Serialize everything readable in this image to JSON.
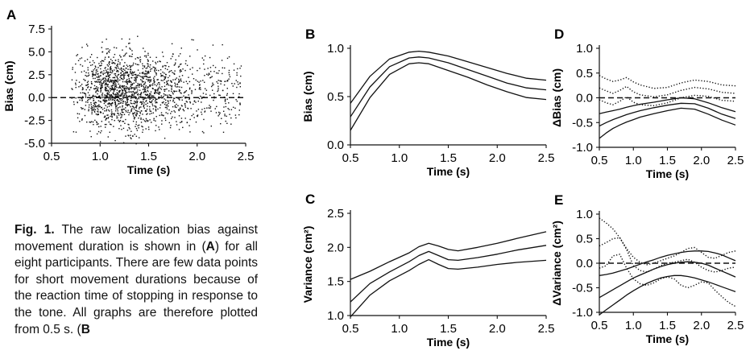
{
  "panels": [
    {
      "letter": "A",
      "type": "scatter",
      "xlabel": "Time (s)",
      "ylabel": "Bias (cm)",
      "xlim": [
        0.5,
        2.5
      ],
      "ylim": [
        -5.0,
        7.5
      ],
      "xticks": [
        0.5,
        1.0,
        1.5,
        2.0,
        2.5
      ],
      "yticks": [
        -5.0,
        -2.5,
        0.0,
        2.5,
        5.0,
        7.5
      ],
      "tick_decimals": [
        1,
        1
      ],
      "reference_line": 0,
      "scatter": {
        "n_points": 1800,
        "x_range": [
          0.7,
          2.45
        ],
        "x_peak": 1.05,
        "y_mean": 0.8,
        "y_sd": 2.1,
        "y_range": [
          -5.0,
          7.0
        ]
      }
    },
    {
      "letter": "B",
      "type": "line",
      "xlabel": "Time (s)",
      "ylabel": "Bias (cm)",
      "xlim": [
        0.5,
        2.5
      ],
      "ylim": [
        0.0,
        1.0
      ],
      "xticks": [
        0.5,
        1.0,
        1.5,
        2.0,
        2.5
      ],
      "yticks": [
        0.0,
        0.5,
        1.0
      ],
      "tick_decimals": [
        1,
        1
      ],
      "x": [
        0.5,
        0.7,
        0.9,
        1.1,
        1.2,
        1.3,
        1.5,
        1.7,
        1.9,
        2.1,
        2.3,
        2.5
      ],
      "series": [
        {
          "style": "solid",
          "values": [
            0.43,
            0.71,
            0.89,
            0.96,
            0.97,
            0.96,
            0.92,
            0.86,
            0.8,
            0.74,
            0.69,
            0.67
          ]
        },
        {
          "style": "solid",
          "values": [
            0.29,
            0.6,
            0.81,
            0.9,
            0.91,
            0.9,
            0.85,
            0.78,
            0.71,
            0.64,
            0.59,
            0.57
          ]
        },
        {
          "style": "solid",
          "values": [
            0.15,
            0.49,
            0.73,
            0.84,
            0.85,
            0.84,
            0.77,
            0.7,
            0.62,
            0.55,
            0.49,
            0.47
          ]
        }
      ]
    },
    {
      "letter": "C",
      "type": "line",
      "xlabel": "Time (s)",
      "ylabel": "Variance (cm²)",
      "xlim": [
        0.5,
        2.5
      ],
      "ylim": [
        1.0,
        2.5
      ],
      "xticks": [
        0.5,
        1.0,
        1.5,
        2.0,
        2.5
      ],
      "yticks": [
        1.0,
        1.5,
        2.0,
        2.5
      ],
      "tick_decimals": [
        1,
        1
      ],
      "x": [
        0.5,
        0.7,
        0.9,
        1.1,
        1.2,
        1.3,
        1.4,
        1.5,
        1.6,
        1.8,
        2.0,
        2.2,
        2.5
      ],
      "series": [
        {
          "style": "solid",
          "values": [
            1.53,
            1.65,
            1.79,
            1.92,
            2.01,
            2.06,
            2.02,
            1.97,
            1.95,
            2.0,
            2.06,
            2.13,
            2.23
          ]
        },
        {
          "style": "solid",
          "values": [
            1.2,
            1.47,
            1.64,
            1.79,
            1.88,
            1.94,
            1.88,
            1.82,
            1.81,
            1.85,
            1.9,
            1.96,
            2.03
          ]
        },
        {
          "style": "solid",
          "values": [
            0.98,
            1.3,
            1.51,
            1.66,
            1.75,
            1.82,
            1.75,
            1.69,
            1.68,
            1.71,
            1.75,
            1.78,
            1.81
          ]
        }
      ]
    },
    {
      "letter": "D",
      "type": "line",
      "xlabel": "Time (s)",
      "ylabel": "ΔBias (cm)",
      "xlim": [
        0.5,
        2.5
      ],
      "ylim": [
        -1.0,
        1.0
      ],
      "xticks": [
        0.5,
        1.0,
        1.5,
        2.0,
        2.5
      ],
      "yticks": [
        -1.0,
        -0.5,
        0.0,
        0.5,
        1.0
      ],
      "tick_decimals": [
        1,
        1
      ],
      "reference_line": 0,
      "x": [
        0.5,
        0.6,
        0.7,
        0.8,
        0.9,
        1.0,
        1.1,
        1.3,
        1.5,
        1.7,
        1.9,
        2.1,
        2.3,
        2.5
      ],
      "series": [
        {
          "style": "dotted",
          "values": [
            0.45,
            0.38,
            0.33,
            0.36,
            0.41,
            0.32,
            0.26,
            0.19,
            0.21,
            0.3,
            0.36,
            0.33,
            0.26,
            0.24
          ]
        },
        {
          "style": "dotted",
          "values": [
            0.2,
            0.14,
            0.09,
            0.15,
            0.23,
            0.12,
            0.06,
            0.02,
            0.06,
            0.15,
            0.21,
            0.18,
            0.11,
            0.09
          ]
        },
        {
          "style": "dotted",
          "values": [
            -0.04,
            -0.1,
            -0.14,
            -0.07,
            0.02,
            -0.09,
            -0.14,
            -0.16,
            -0.1,
            0.0,
            0.05,
            0.03,
            -0.05,
            -0.07
          ]
        },
        {
          "style": "solid",
          "values": [
            -0.32,
            -0.29,
            -0.26,
            -0.23,
            -0.19,
            -0.16,
            -0.13,
            -0.09,
            -0.04,
            0.0,
            -0.02,
            -0.1,
            -0.2,
            -0.28
          ]
        },
        {
          "style": "solid",
          "values": [
            -0.57,
            -0.5,
            -0.44,
            -0.39,
            -0.34,
            -0.3,
            -0.26,
            -0.2,
            -0.15,
            -0.11,
            -0.12,
            -0.21,
            -0.33,
            -0.42
          ]
        },
        {
          "style": "solid",
          "values": [
            -0.82,
            -0.71,
            -0.62,
            -0.55,
            -0.49,
            -0.44,
            -0.39,
            -0.32,
            -0.26,
            -0.21,
            -0.23,
            -0.33,
            -0.45,
            -0.55
          ]
        }
      ]
    },
    {
      "letter": "E",
      "type": "line",
      "xlabel": "Time (s)",
      "ylabel": "ΔVariance (cm²)",
      "xlim": [
        0.5,
        2.5
      ],
      "ylim": [
        -1.0,
        1.0
      ],
      "xticks": [
        0.5,
        1.0,
        1.5,
        2.0,
        2.5
      ],
      "yticks": [
        -1.0,
        -0.5,
        0.0,
        0.5,
        1.0
      ],
      "tick_decimals": [
        1,
        1
      ],
      "reference_line": 0,
      "x": [
        0.5,
        0.6,
        0.7,
        0.8,
        0.9,
        1.0,
        1.1,
        1.2,
        1.3,
        1.4,
        1.5,
        1.6,
        1.7,
        1.8,
        1.9,
        2.0,
        2.1,
        2.2,
        2.3,
        2.4,
        2.5
      ],
      "series": [
        {
          "style": "dotted",
          "values": [
            0.92,
            0.82,
            0.7,
            0.52,
            0.3,
            0.12,
            0.02,
            -0.03,
            0.0,
            0.05,
            0.1,
            0.15,
            0.22,
            0.3,
            0.32,
            0.22,
            0.12,
            0.1,
            0.16,
            0.22,
            0.25
          ]
        },
        {
          "style": "dotted",
          "values": [
            0.35,
            0.42,
            0.5,
            0.52,
            0.28,
            -0.05,
            -0.15,
            -0.18,
            -0.12,
            -0.05,
            0.0,
            0.02,
            0.05,
            0.08,
            0.02,
            -0.08,
            -0.15,
            -0.18,
            -0.15,
            -0.1,
            -0.08
          ]
        },
        {
          "style": "dotted",
          "values": [
            -0.1,
            -0.05,
            0.15,
            0.18,
            -0.1,
            -0.32,
            -0.42,
            -0.45,
            -0.4,
            -0.32,
            -0.28,
            -0.32,
            -0.45,
            -0.5,
            -0.45,
            -0.38,
            -0.4,
            -0.55,
            -0.68,
            -0.8,
            -0.88
          ]
        },
        {
          "style": "solid",
          "values": [
            -0.25,
            -0.23,
            -0.2,
            -0.16,
            -0.12,
            -0.07,
            -0.02,
            0.03,
            0.07,
            0.12,
            0.16,
            0.19,
            0.22,
            0.24,
            0.25,
            0.25,
            0.24,
            0.21,
            0.17,
            0.11,
            0.05
          ]
        },
        {
          "style": "solid",
          "values": [
            -0.7,
            -0.62,
            -0.54,
            -0.46,
            -0.38,
            -0.3,
            -0.24,
            -0.18,
            -0.12,
            -0.07,
            -0.03,
            0.0,
            0.02,
            0.03,
            0.02,
            0.0,
            -0.04,
            -0.1,
            -0.16,
            -0.22,
            -0.28
          ]
        },
        {
          "style": "solid",
          "values": [
            -1.05,
            -0.95,
            -0.85,
            -0.75,
            -0.65,
            -0.56,
            -0.48,
            -0.41,
            -0.35,
            -0.3,
            -0.27,
            -0.25,
            -0.25,
            -0.27,
            -0.3,
            -0.34,
            -0.38,
            -0.43,
            -0.48,
            -0.53,
            -0.58
          ]
        }
      ]
    }
  ],
  "caption": {
    "fig_label": "Fig. 1.",
    "segments": [
      {
        "text": "The raw localization bias against movement duration is shown in (",
        "bold": false
      },
      {
        "text": "A",
        "bold": true
      },
      {
        "text": ") for all eight participants. There are few data points for short movement durations because of the reaction time of stopping in response to the tone. All graphs are therefore plotted from 0.5 s. (",
        "bold": false
      },
      {
        "text": "B",
        "bold": true
      }
    ]
  }
}
